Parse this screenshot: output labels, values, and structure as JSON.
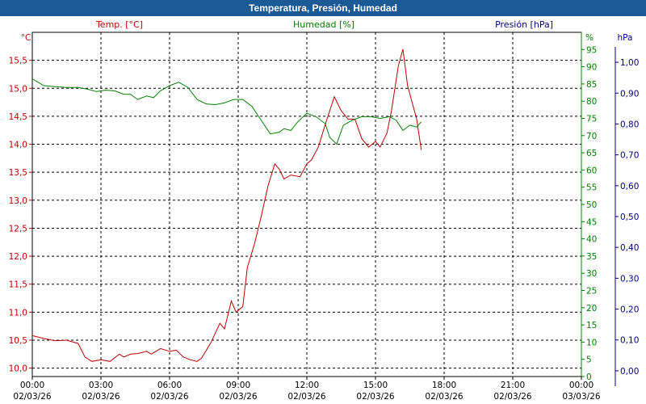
{
  "window": {
    "title": "Temperatura, Presión, Humedad"
  },
  "colors": {
    "temperature": "#c00000",
    "humidity": "#008000",
    "pressure": "#00008b",
    "grid": "#000000",
    "title_bar": "#1c5a96"
  },
  "chart_data": {
    "type": "line",
    "title": "Temperatura, Presión, Humedad",
    "grid": true,
    "x_ticks": [
      {
        "time": "00:00",
        "date": "02/03/26"
      },
      {
        "time": "03:00",
        "date": "02/03/26"
      },
      {
        "time": "06:00",
        "date": "02/03/26"
      },
      {
        "time": "09:00",
        "date": "02/03/26"
      },
      {
        "time": "12:00",
        "date": "02/03/26"
      },
      {
        "time": "15:00",
        "date": "02/03/26"
      },
      {
        "time": "18:00",
        "date": "02/03/26"
      },
      {
        "time": "21:00",
        "date": "02/03/26"
      },
      {
        "time": "00:00",
        "date": "03/03/26"
      }
    ],
    "x_range_hours": [
      0,
      24
    ],
    "axes": {
      "temperature": {
        "unit": "°C",
        "min": 9.85,
        "max": 16.0,
        "ticks": [
          "10,0",
          "10,5",
          "11,0",
          "11,5",
          "12,0",
          "12,5",
          "13,0",
          "13,5",
          "14,0",
          "14,5",
          "15,0",
          "15,5"
        ]
      },
      "humidity": {
        "unit": "%",
        "min": 0,
        "max": 100,
        "ticks": [
          "0",
          "5",
          "10",
          "15",
          "20",
          "25",
          "30",
          "35",
          "40",
          "45",
          "50",
          "55",
          "60",
          "65",
          "70",
          "75",
          "80",
          "85",
          "90",
          "95"
        ]
      },
      "pressure": {
        "unit": "hPa",
        "min": -0.05,
        "max": 1.05,
        "ticks": [
          "0,00",
          "0,10",
          "0,20",
          "0,30",
          "0,40",
          "0,50",
          "0,60",
          "0,70",
          "0,80",
          "0,90",
          "1,00"
        ]
      }
    },
    "series": [
      {
        "name": "Temp. [°C]",
        "axis": "temperature",
        "points": [
          [
            0.0,
            10.58
          ],
          [
            0.5,
            10.53
          ],
          [
            1.0,
            10.49
          ],
          [
            1.5,
            10.5
          ],
          [
            2.0,
            10.44
          ],
          [
            2.3,
            10.2
          ],
          [
            2.6,
            10.12
          ],
          [
            3.0,
            10.15
          ],
          [
            3.4,
            10.12
          ],
          [
            3.8,
            10.25
          ],
          [
            4.0,
            10.2
          ],
          [
            4.3,
            10.25
          ],
          [
            4.6,
            10.26
          ],
          [
            5.0,
            10.3
          ],
          [
            5.2,
            10.25
          ],
          [
            5.6,
            10.35
          ],
          [
            6.0,
            10.3
          ],
          [
            6.3,
            10.32
          ],
          [
            6.6,
            10.2
          ],
          [
            6.9,
            10.15
          ],
          [
            7.2,
            10.12
          ],
          [
            7.4,
            10.18
          ],
          [
            7.8,
            10.45
          ],
          [
            8.2,
            10.8
          ],
          [
            8.4,
            10.7
          ],
          [
            8.7,
            11.2
          ],
          [
            8.9,
            11.0
          ],
          [
            9.2,
            11.1
          ],
          [
            9.4,
            11.8
          ],
          [
            9.7,
            12.2
          ],
          [
            10.0,
            12.7
          ],
          [
            10.3,
            13.25
          ],
          [
            10.6,
            13.65
          ],
          [
            10.8,
            13.55
          ],
          [
            11.0,
            13.38
          ],
          [
            11.3,
            13.45
          ],
          [
            11.7,
            13.42
          ],
          [
            12.0,
            13.65
          ],
          [
            12.2,
            13.72
          ],
          [
            12.5,
            13.95
          ],
          [
            12.8,
            14.35
          ],
          [
            13.2,
            14.85
          ],
          [
            13.5,
            14.6
          ],
          [
            13.8,
            14.45
          ],
          [
            14.1,
            14.45
          ],
          [
            14.4,
            14.1
          ],
          [
            14.7,
            13.95
          ],
          [
            15.0,
            14.05
          ],
          [
            15.2,
            13.95
          ],
          [
            15.5,
            14.2
          ],
          [
            15.7,
            14.6
          ],
          [
            16.0,
            15.4
          ],
          [
            16.2,
            15.7
          ],
          [
            16.4,
            15.05
          ],
          [
            16.6,
            14.75
          ],
          [
            16.8,
            14.45
          ],
          [
            17.0,
            13.9
          ]
        ]
      },
      {
        "name": "Humedad [%]",
        "axis": "humidity",
        "points": [
          [
            0.0,
            86.5
          ],
          [
            0.5,
            84.5
          ],
          [
            1.0,
            84.2
          ],
          [
            1.5,
            84.0
          ],
          [
            2.0,
            84.0
          ],
          [
            2.4,
            83.5
          ],
          [
            2.8,
            82.8
          ],
          [
            3.2,
            83.2
          ],
          [
            3.6,
            83.0
          ],
          [
            4.0,
            82.0
          ],
          [
            4.3,
            82.0
          ],
          [
            4.6,
            80.5
          ],
          [
            5.0,
            81.5
          ],
          [
            5.3,
            81.0
          ],
          [
            5.6,
            83.0
          ],
          [
            6.0,
            84.5
          ],
          [
            6.4,
            85.5
          ],
          [
            6.8,
            84.0
          ],
          [
            7.2,
            80.5
          ],
          [
            7.6,
            79.2
          ],
          [
            8.0,
            79.0
          ],
          [
            8.4,
            79.5
          ],
          [
            8.8,
            80.5
          ],
          [
            9.2,
            80.5
          ],
          [
            9.6,
            78.5
          ],
          [
            10.0,
            74.5
          ],
          [
            10.4,
            70.5
          ],
          [
            10.8,
            71.0
          ],
          [
            11.0,
            72.0
          ],
          [
            11.3,
            71.5
          ],
          [
            11.6,
            74.0
          ],
          [
            12.0,
            76.5
          ],
          [
            12.4,
            75.5
          ],
          [
            12.8,
            73.5
          ],
          [
            13.0,
            69.5
          ],
          [
            13.3,
            67.5
          ],
          [
            13.6,
            73.0
          ],
          [
            14.0,
            74.5
          ],
          [
            14.4,
            75.5
          ],
          [
            14.8,
            75.5
          ],
          [
            15.2,
            75.0
          ],
          [
            15.6,
            75.5
          ],
          [
            15.9,
            74.5
          ],
          [
            16.2,
            71.5
          ],
          [
            16.5,
            73.0
          ],
          [
            16.8,
            72.5
          ],
          [
            17.0,
            74.0
          ]
        ]
      },
      {
        "name": "Presión [hPa]",
        "axis": "pressure",
        "points": []
      }
    ]
  }
}
